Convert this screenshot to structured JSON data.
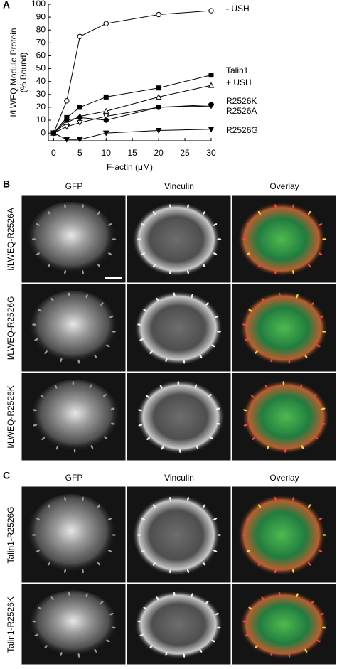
{
  "chart_data": {
    "type": "line",
    "panel_label": "A",
    "ylabel": [
      "I/LWEQ Module Protein",
      "(% Bound)"
    ],
    "xlabel": "F-actin (μM)",
    "x": [
      0,
      2.5,
      5,
      10,
      20,
      30
    ],
    "xlim": [
      -1,
      30
    ],
    "xticks": [
      0,
      5,
      10,
      15,
      20,
      25,
      30
    ],
    "ylim": [
      -6,
      100
    ],
    "yticks": [
      0,
      10,
      20,
      30,
      40,
      50,
      60,
      70,
      80,
      90,
      100
    ],
    "series": [
      {
        "name": "- USH",
        "color": "#000000",
        "marker": "open-circle",
        "values": [
          0,
          25,
          75,
          85,
          92,
          95
        ]
      },
      {
        "name": "Talin1",
        "color": "#000000",
        "marker": "filled-square",
        "values": [
          0,
          12,
          20,
          28,
          35,
          45
        ]
      },
      {
        "name": "+ USH",
        "color": "#000000",
        "marker": "open-triangle",
        "values": [
          0,
          8,
          13,
          17,
          28,
          37
        ]
      },
      {
        "name": "R2526K",
        "color": "#000000",
        "marker": "open-down-triangle",
        "values": [
          0,
          5,
          8,
          13,
          20,
          21
        ]
      },
      {
        "name": "R2526A",
        "color": "#000000",
        "marker": "filled-circle",
        "values": [
          0,
          10,
          12,
          10,
          20,
          22
        ]
      },
      {
        "name": "R2526G",
        "color": "#000000",
        "marker": "filled-down-triangle",
        "values": [
          0,
          -5,
          -5,
          0,
          2,
          3
        ]
      }
    ]
  },
  "panels": [
    {
      "label": "B",
      "columns": [
        "GFP",
        "Vinculin",
        "Overlay"
      ],
      "rows": [
        "I/LWEQ-R2526A",
        "I/LWEQ-R2526G",
        "I/LWEQ-R2526K"
      ]
    },
    {
      "label": "C",
      "columns": [
        "GFP",
        "Vinculin",
        "Overlay"
      ],
      "rows": [
        "Talin1-R2526G",
        "Talin1-R2526K"
      ]
    }
  ]
}
